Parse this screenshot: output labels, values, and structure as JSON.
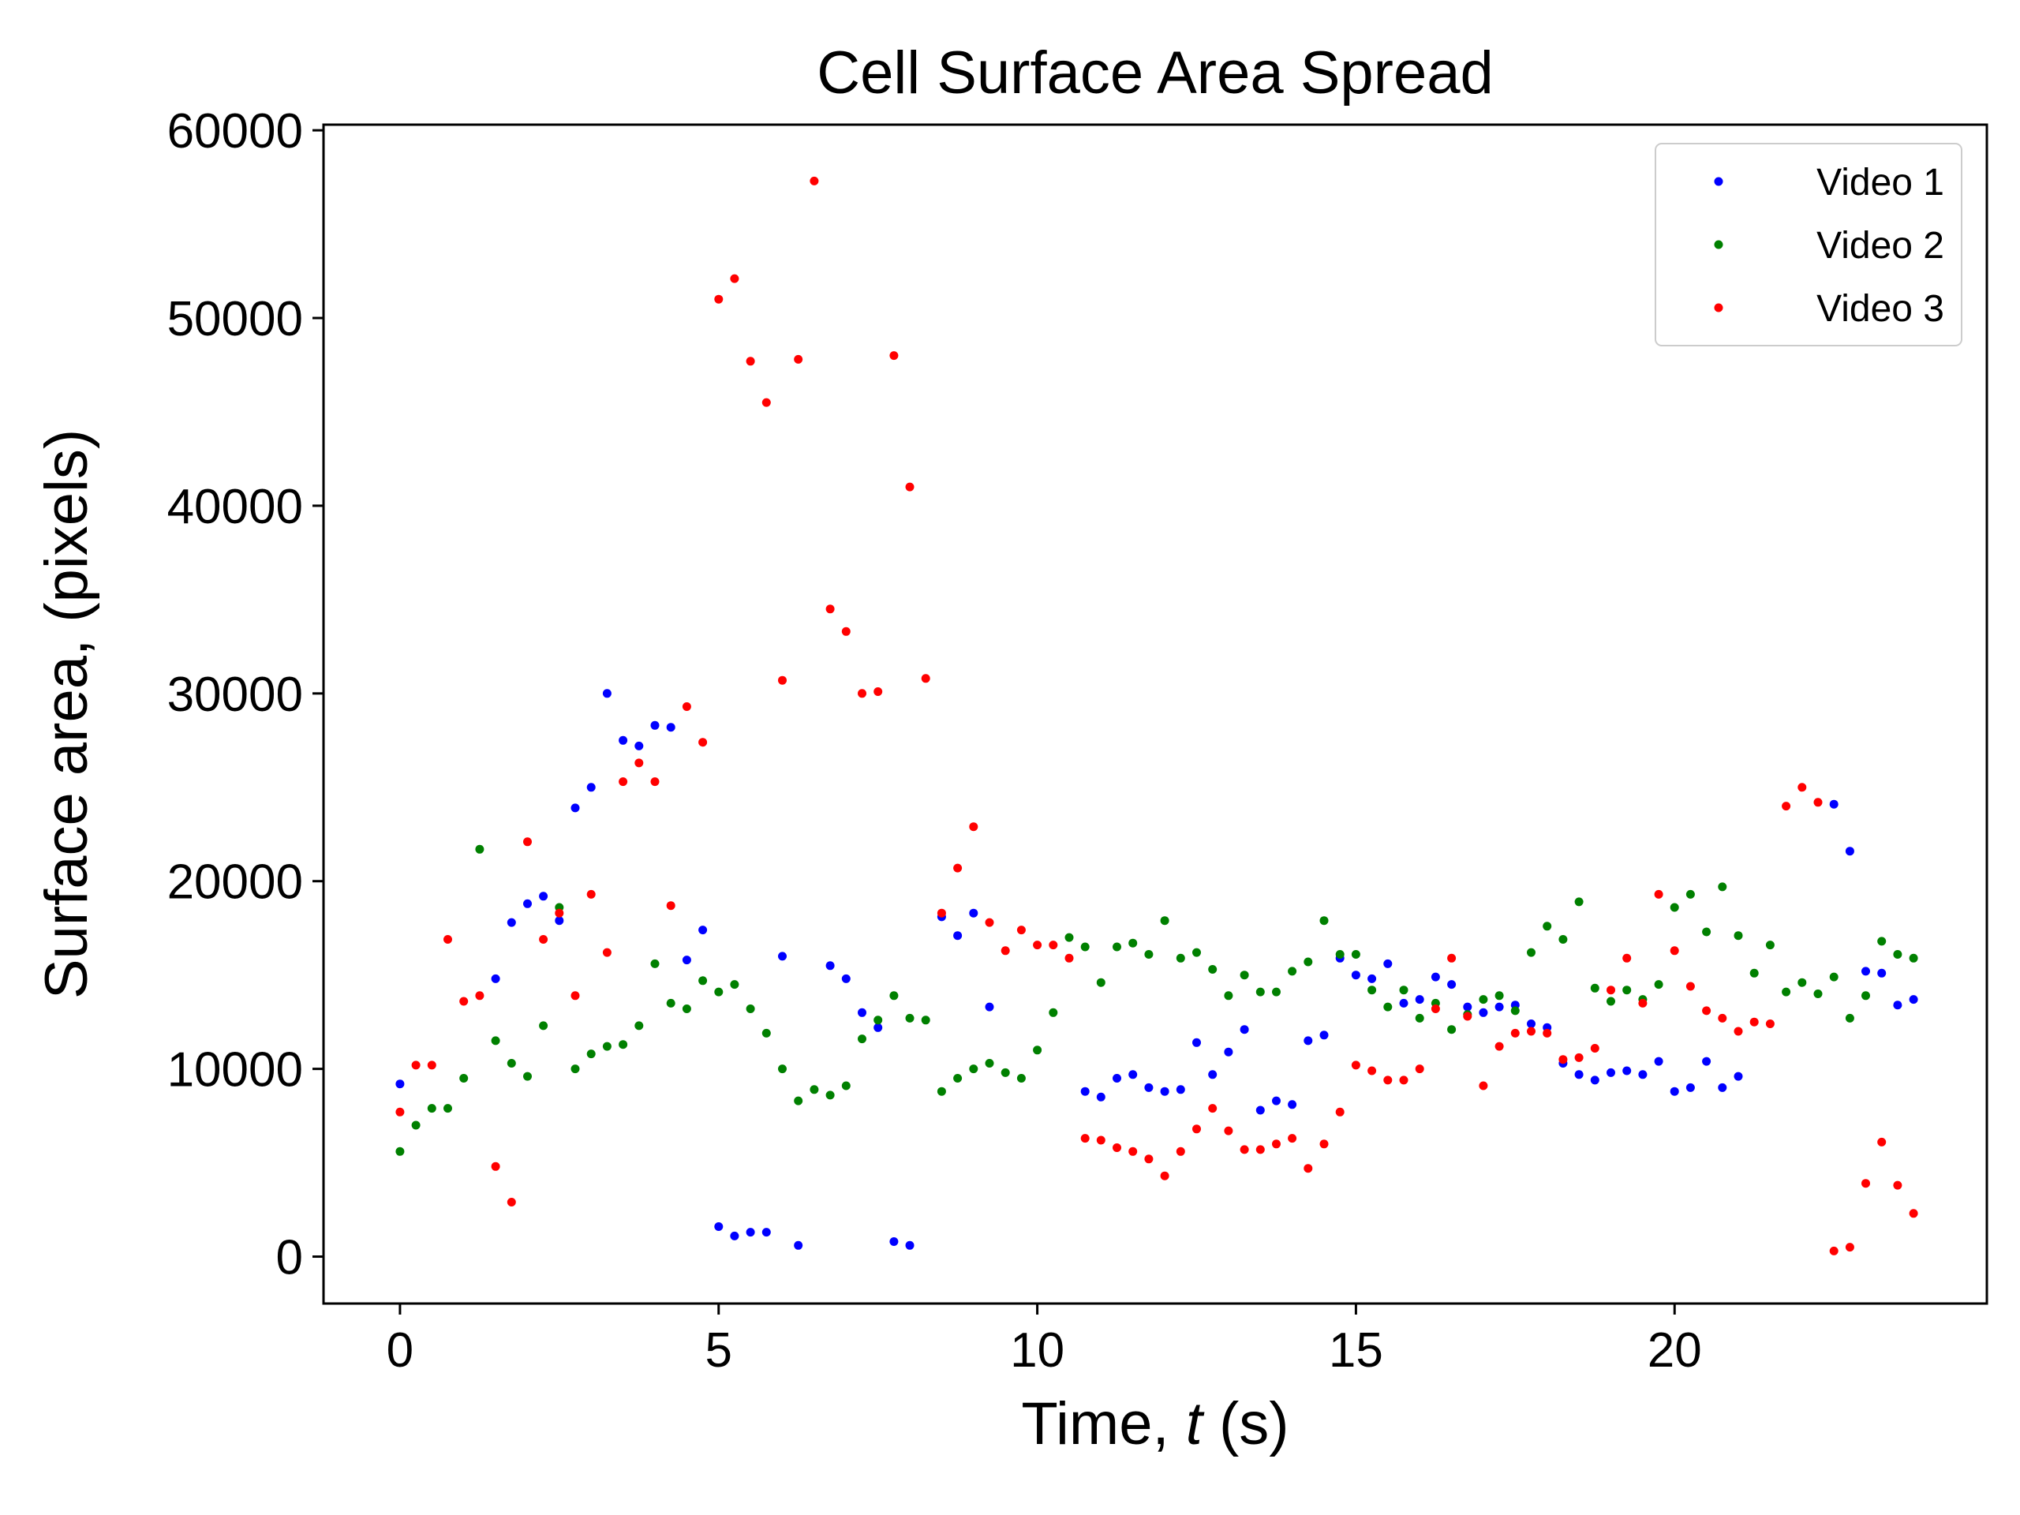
{
  "chart_data": {
    "type": "scatter",
    "title": "Cell Surface Area Spread",
    "xlabel": "Time, ",
    "xlabel_var": "t",
    "xlabel_unit": " (s)",
    "ylabel": "Surface area, (pixels)",
    "xlim": [
      -1.2,
      24.9
    ],
    "ylim": [
      -2500,
      60300
    ],
    "x_ticks": [
      0,
      5,
      10,
      15,
      20
    ],
    "x_tick_labels": [
      "0",
      "5",
      "10",
      "15",
      "20"
    ],
    "y_ticks": [
      0,
      10000,
      20000,
      30000,
      40000,
      50000,
      60000
    ],
    "y_tick_labels": [
      "0",
      "10000",
      "20000",
      "30000",
      "40000",
      "50000",
      "60000"
    ],
    "grid": false,
    "legend_position": "top-right",
    "series": [
      {
        "name": "Video 1",
        "color": "#0000ff",
        "points": [
          [
            0,
            9200
          ],
          [
            1.5,
            14800
          ],
          [
            1.75,
            17800
          ],
          [
            2.0,
            18800
          ],
          [
            2.25,
            19200
          ],
          [
            2.5,
            17900
          ],
          [
            2.75,
            23900
          ],
          [
            3.0,
            25000
          ],
          [
            3.25,
            30000
          ],
          [
            3.5,
            27500
          ],
          [
            3.75,
            27200
          ],
          [
            4.0,
            28300
          ],
          [
            4.25,
            28200
          ],
          [
            4.5,
            15800
          ],
          [
            4.75,
            17400
          ],
          [
            5.0,
            1600
          ],
          [
            5.25,
            1100
          ],
          [
            5.5,
            1300
          ],
          [
            5.75,
            1300
          ],
          [
            6.0,
            16000
          ],
          [
            6.25,
            600
          ],
          [
            6.75,
            15500
          ],
          [
            7.0,
            14800
          ],
          [
            7.25,
            13000
          ],
          [
            7.5,
            12200
          ],
          [
            7.75,
            800
          ],
          [
            8.0,
            600
          ],
          [
            8.5,
            18100
          ],
          [
            8.75,
            17100
          ],
          [
            9.0,
            18300
          ],
          [
            9.25,
            13300
          ],
          [
            10.75,
            8800
          ],
          [
            11.0,
            8500
          ],
          [
            11.25,
            9500
          ],
          [
            11.5,
            9700
          ],
          [
            11.75,
            9000
          ],
          [
            12.0,
            8800
          ],
          [
            12.25,
            8900
          ],
          [
            12.5,
            11400
          ],
          [
            12.75,
            9700
          ],
          [
            13.0,
            10900
          ],
          [
            13.25,
            12100
          ],
          [
            13.5,
            7800
          ],
          [
            13.75,
            8300
          ],
          [
            14.0,
            8100
          ],
          [
            14.25,
            11500
          ],
          [
            14.5,
            11800
          ],
          [
            14.75,
            15900
          ],
          [
            15.0,
            15000
          ],
          [
            15.25,
            14800
          ],
          [
            15.5,
            15600
          ],
          [
            15.75,
            13500
          ],
          [
            16.0,
            13700
          ],
          [
            16.25,
            14900
          ],
          [
            16.5,
            14500
          ],
          [
            16.75,
            13300
          ],
          [
            17.0,
            13000
          ],
          [
            17.25,
            13300
          ],
          [
            17.5,
            13400
          ],
          [
            17.75,
            12400
          ],
          [
            18.0,
            12200
          ],
          [
            18.25,
            10300
          ],
          [
            18.5,
            9700
          ],
          [
            18.75,
            9400
          ],
          [
            19.0,
            9800
          ],
          [
            19.25,
            9900
          ],
          [
            19.5,
            9700
          ],
          [
            19.75,
            10400
          ],
          [
            20.0,
            8800
          ],
          [
            20.25,
            9000
          ],
          [
            20.5,
            10400
          ],
          [
            20.75,
            9000
          ],
          [
            21.0,
            9600
          ],
          [
            22.5,
            24100
          ],
          [
            22.75,
            21600
          ],
          [
            23.0,
            15200
          ],
          [
            23.25,
            15100
          ],
          [
            23.5,
            13400
          ],
          [
            23.75,
            13700
          ]
        ]
      },
      {
        "name": "Video 2",
        "color": "#008000",
        "points": [
          [
            0,
            5600
          ],
          [
            0.25,
            7000
          ],
          [
            0.5,
            7900
          ],
          [
            0.75,
            7900
          ],
          [
            1.0,
            9500
          ],
          [
            1.25,
            21700
          ],
          [
            1.5,
            11500
          ],
          [
            1.75,
            10300
          ],
          [
            2.0,
            9600
          ],
          [
            2.25,
            12300
          ],
          [
            2.5,
            18600
          ],
          [
            2.75,
            10000
          ],
          [
            3.0,
            10800
          ],
          [
            3.25,
            11200
          ],
          [
            3.5,
            11300
          ],
          [
            3.75,
            12300
          ],
          [
            4.0,
            15600
          ],
          [
            4.25,
            13500
          ],
          [
            4.5,
            13200
          ],
          [
            4.75,
            14700
          ],
          [
            5.0,
            14100
          ],
          [
            5.25,
            14500
          ],
          [
            5.5,
            13200
          ],
          [
            5.75,
            11900
          ],
          [
            6.0,
            10000
          ],
          [
            6.25,
            8300
          ],
          [
            6.5,
            8900
          ],
          [
            6.75,
            8600
          ],
          [
            7.0,
            9100
          ],
          [
            7.25,
            11600
          ],
          [
            7.5,
            12600
          ],
          [
            7.75,
            13900
          ],
          [
            8.0,
            12700
          ],
          [
            8.25,
            12600
          ],
          [
            8.5,
            8800
          ],
          [
            8.75,
            9500
          ],
          [
            9.0,
            10000
          ],
          [
            9.25,
            10300
          ],
          [
            9.5,
            9800
          ],
          [
            9.75,
            9500
          ],
          [
            10.0,
            11000
          ],
          [
            10.25,
            13000
          ],
          [
            10.5,
            17000
          ],
          [
            10.75,
            16500
          ],
          [
            11.0,
            14600
          ],
          [
            11.25,
            16500
          ],
          [
            11.5,
            16700
          ],
          [
            11.75,
            16100
          ],
          [
            12.0,
            17900
          ],
          [
            12.25,
            15900
          ],
          [
            12.5,
            16200
          ],
          [
            12.75,
            15300
          ],
          [
            13.0,
            13900
          ],
          [
            13.25,
            15000
          ],
          [
            13.5,
            14100
          ],
          [
            13.75,
            14100
          ],
          [
            14.0,
            15200
          ],
          [
            14.25,
            15700
          ],
          [
            14.5,
            17900
          ],
          [
            14.75,
            16100
          ],
          [
            15.0,
            16100
          ],
          [
            15.25,
            14200
          ],
          [
            15.5,
            13300
          ],
          [
            15.75,
            14200
          ],
          [
            16.0,
            12700
          ],
          [
            16.25,
            13500
          ],
          [
            16.5,
            12100
          ],
          [
            16.75,
            12900
          ],
          [
            17.0,
            13700
          ],
          [
            17.25,
            13900
          ],
          [
            17.5,
            13100
          ],
          [
            17.75,
            16200
          ],
          [
            18.0,
            17600
          ],
          [
            18.25,
            16900
          ],
          [
            18.5,
            18900
          ],
          [
            18.75,
            14300
          ],
          [
            19.0,
            13600
          ],
          [
            19.25,
            14200
          ],
          [
            19.5,
            13700
          ],
          [
            19.75,
            14500
          ],
          [
            20.0,
            18600
          ],
          [
            20.25,
            19300
          ],
          [
            20.5,
            17300
          ],
          [
            20.75,
            19700
          ],
          [
            21.0,
            17100
          ],
          [
            21.25,
            15100
          ],
          [
            21.5,
            16600
          ],
          [
            21.75,
            14100
          ],
          [
            22.0,
            14600
          ],
          [
            22.25,
            14000
          ],
          [
            22.5,
            14900
          ],
          [
            22.75,
            12700
          ],
          [
            23.0,
            13900
          ],
          [
            23.25,
            16800
          ],
          [
            23.5,
            16100
          ],
          [
            23.75,
            15900
          ]
        ]
      },
      {
        "name": "Video 3",
        "color": "#ff0000",
        "points": [
          [
            0,
            7700
          ],
          [
            0.25,
            10200
          ],
          [
            0.5,
            10200
          ],
          [
            0.75,
            16900
          ],
          [
            1.0,
            13600
          ],
          [
            1.25,
            13900
          ],
          [
            1.5,
            4800
          ],
          [
            1.75,
            2900
          ],
          [
            2.0,
            22100
          ],
          [
            2.25,
            16900
          ],
          [
            2.5,
            18300
          ],
          [
            2.75,
            13900
          ],
          [
            3.0,
            19300
          ],
          [
            3.25,
            16200
          ],
          [
            3.5,
            25300
          ],
          [
            3.75,
            26300
          ],
          [
            4.0,
            25300
          ],
          [
            4.25,
            18700
          ],
          [
            4.5,
            29300
          ],
          [
            4.75,
            27400
          ],
          [
            5.0,
            51000
          ],
          [
            5.25,
            52100
          ],
          [
            5.5,
            47700
          ],
          [
            5.75,
            45500
          ],
          [
            6.0,
            30700
          ],
          [
            6.25,
            47800
          ],
          [
            6.5,
            57300
          ],
          [
            6.75,
            34500
          ],
          [
            7.0,
            33300
          ],
          [
            7.25,
            30000
          ],
          [
            7.5,
            30100
          ],
          [
            7.75,
            48000
          ],
          [
            8.0,
            41000
          ],
          [
            8.25,
            30800
          ],
          [
            8.5,
            18300
          ],
          [
            8.75,
            20700
          ],
          [
            9.0,
            22900
          ],
          [
            9.25,
            17800
          ],
          [
            9.5,
            16300
          ],
          [
            9.75,
            17400
          ],
          [
            10.0,
            16600
          ],
          [
            10.25,
            16600
          ],
          [
            10.5,
            15900
          ],
          [
            10.75,
            6300
          ],
          [
            11.0,
            6200
          ],
          [
            11.25,
            5800
          ],
          [
            11.5,
            5600
          ],
          [
            11.75,
            5200
          ],
          [
            12.0,
            4300
          ],
          [
            12.25,
            5600
          ],
          [
            12.5,
            6800
          ],
          [
            12.75,
            7900
          ],
          [
            13.0,
            6700
          ],
          [
            13.25,
            5700
          ],
          [
            13.5,
            5700
          ],
          [
            13.75,
            6000
          ],
          [
            14.0,
            6300
          ],
          [
            14.25,
            4700
          ],
          [
            14.5,
            6000
          ],
          [
            14.75,
            7700
          ],
          [
            15.0,
            10200
          ],
          [
            15.25,
            9900
          ],
          [
            15.5,
            9400
          ],
          [
            15.75,
            9400
          ],
          [
            16.0,
            10000
          ],
          [
            16.25,
            13200
          ],
          [
            16.5,
            15900
          ],
          [
            16.75,
            12800
          ],
          [
            17.0,
            9100
          ],
          [
            17.25,
            11200
          ],
          [
            17.5,
            11900
          ],
          [
            17.75,
            12000
          ],
          [
            18.0,
            11900
          ],
          [
            18.25,
            10500
          ],
          [
            18.5,
            10600
          ],
          [
            18.75,
            11100
          ],
          [
            19.0,
            14200
          ],
          [
            19.25,
            15900
          ],
          [
            19.5,
            13500
          ],
          [
            19.75,
            19300
          ],
          [
            20.0,
            16300
          ],
          [
            20.25,
            14400
          ],
          [
            20.5,
            13100
          ],
          [
            20.75,
            12700
          ],
          [
            21.0,
            12000
          ],
          [
            21.25,
            12500
          ],
          [
            21.5,
            12400
          ],
          [
            21.75,
            24000
          ],
          [
            22.0,
            25000
          ],
          [
            22.25,
            24200
          ],
          [
            22.5,
            300
          ],
          [
            22.75,
            500
          ],
          [
            23.0,
            3900
          ],
          [
            23.25,
            6100
          ],
          [
            23.5,
            3800
          ],
          [
            23.75,
            2300
          ]
        ]
      }
    ]
  }
}
